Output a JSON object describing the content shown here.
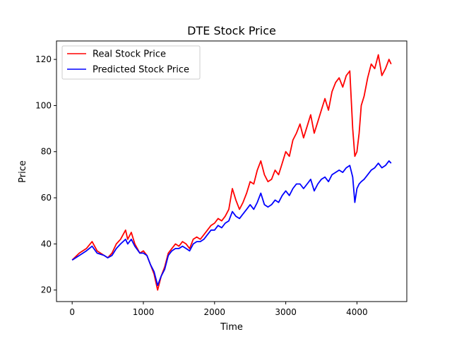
{
  "chart_data": {
    "type": "line",
    "title": "DTE Stock Price",
    "xlabel": "Time",
    "ylabel": "Price",
    "xlim": [
      -220,
      4700
    ],
    "ylim": [
      15,
      128
    ],
    "xticks": [
      0,
      1000,
      2000,
      3000,
      4000
    ],
    "yticks": [
      20,
      40,
      60,
      80,
      100,
      120
    ],
    "grid": false,
    "legend_position": "top-left",
    "series": [
      {
        "name": "Real Stock Price",
        "color": "#ff0000",
        "x": [
          0,
          100,
          200,
          280,
          350,
          450,
          500,
          560,
          620,
          680,
          750,
          780,
          830,
          880,
          950,
          1000,
          1050,
          1100,
          1150,
          1200,
          1250,
          1300,
          1350,
          1400,
          1450,
          1500,
          1550,
          1600,
          1650,
          1700,
          1750,
          1800,
          1850,
          1900,
          1950,
          2000,
          2050,
          2100,
          2150,
          2200,
          2250,
          2300,
          2350,
          2400,
          2450,
          2500,
          2550,
          2600,
          2650,
          2700,
          2750,
          2800,
          2850,
          2900,
          2950,
          3000,
          3050,
          3100,
          3150,
          3200,
          3250,
          3300,
          3350,
          3400,
          3450,
          3500,
          3550,
          3600,
          3650,
          3700,
          3750,
          3800,
          3850,
          3900,
          3940,
          3970,
          4000,
          4030,
          4060,
          4100,
          4150,
          4200,
          4250,
          4300,
          4350,
          4400,
          4450,
          4480
        ],
        "y": [
          33,
          36,
          38,
          41,
          37,
          35,
          34,
          36,
          40,
          42,
          46,
          42,
          45,
          40,
          36,
          37,
          35,
          31,
          27,
          20,
          26,
          30,
          36,
          38,
          40,
          39,
          41,
          40,
          38,
          42,
          43,
          42,
          44,
          46,
          48,
          49,
          51,
          50,
          52,
          55,
          64,
          59,
          55,
          58,
          62,
          67,
          66,
          72,
          76,
          70,
          67,
          68,
          72,
          70,
          75,
          80,
          78,
          85,
          88,
          92,
          86,
          91,
          96,
          88,
          93,
          98,
          103,
          98,
          106,
          110,
          112,
          108,
          113,
          115,
          90,
          78,
          80,
          88,
          100,
          104,
          112,
          118,
          116,
          122,
          113,
          116,
          120,
          118
        ]
      },
      {
        "name": "Predicted Stock Price",
        "color": "#0000ff",
        "x": [
          0,
          100,
          200,
          280,
          350,
          450,
          500,
          560,
          620,
          680,
          750,
          780,
          830,
          880,
          950,
          1000,
          1050,
          1100,
          1150,
          1200,
          1250,
          1300,
          1350,
          1400,
          1450,
          1500,
          1550,
          1600,
          1650,
          1700,
          1750,
          1800,
          1850,
          1900,
          1950,
          2000,
          2050,
          2100,
          2150,
          2200,
          2250,
          2300,
          2350,
          2400,
          2450,
          2500,
          2550,
          2600,
          2650,
          2700,
          2750,
          2800,
          2850,
          2900,
          2950,
          3000,
          3050,
          3100,
          3150,
          3200,
          3250,
          3300,
          3350,
          3400,
          3450,
          3500,
          3550,
          3600,
          3650,
          3700,
          3750,
          3800,
          3850,
          3900,
          3940,
          3970,
          4000,
          4030,
          4060,
          4100,
          4150,
          4200,
          4250,
          4300,
          4350,
          4400,
          4450,
          4480
        ],
        "y": [
          33,
          35,
          37,
          39,
          36,
          35,
          34,
          35,
          38,
          40,
          42,
          40,
          42,
          39,
          36,
          36,
          35,
          31,
          28,
          22,
          26,
          29,
          35,
          37,
          38,
          38,
          39,
          38,
          37,
          40,
          41,
          41,
          42,
          44,
          46,
          46,
          48,
          47,
          49,
          50,
          54,
          52,
          51,
          53,
          55,
          57,
          55,
          58,
          62,
          57,
          56,
          57,
          59,
          58,
          61,
          63,
          61,
          64,
          66,
          66,
          64,
          66,
          68,
          63,
          66,
          68,
          69,
          67,
          70,
          71,
          72,
          71,
          73,
          74,
          69,
          58,
          64,
          66,
          67,
          68,
          70,
          72,
          73,
          75,
          73,
          74,
          76,
          75
        ]
      }
    ]
  }
}
